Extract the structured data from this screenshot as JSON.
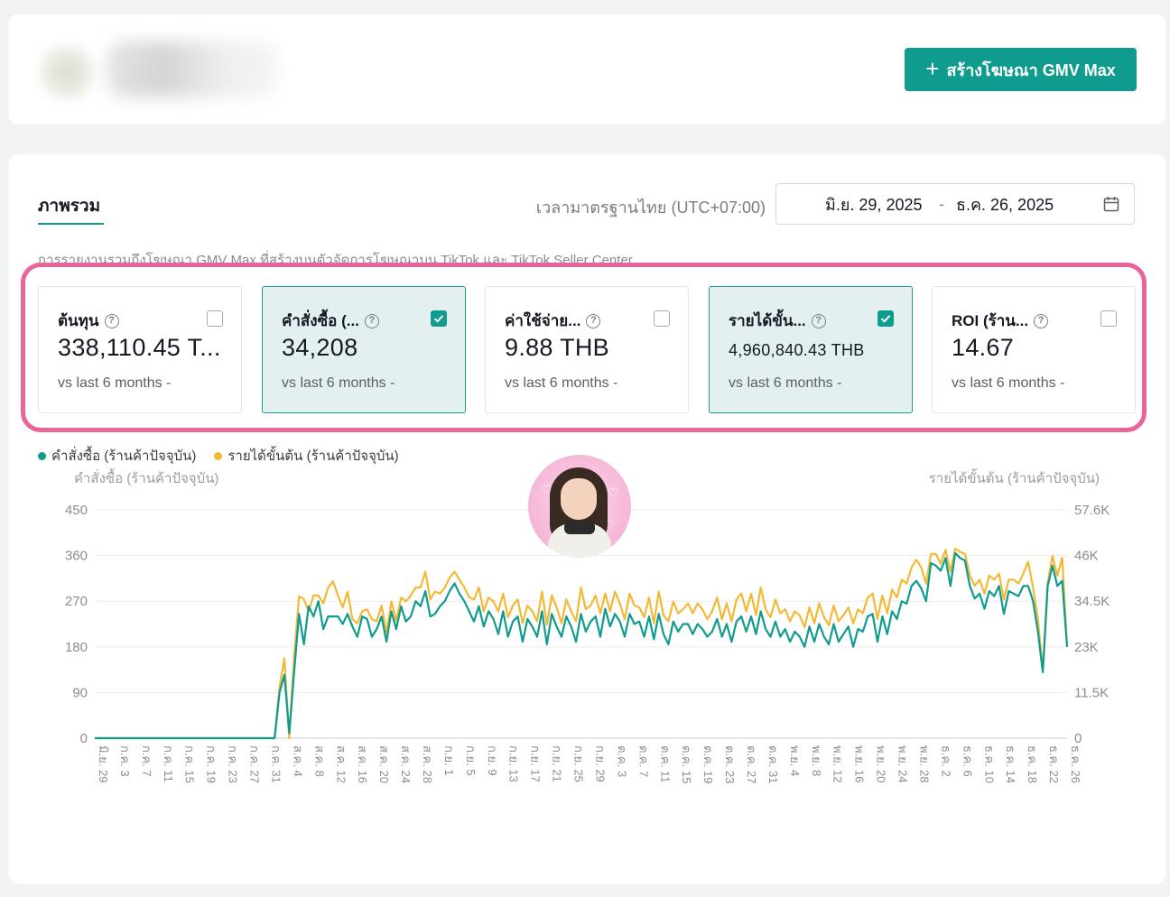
{
  "header": {
    "create_button_label": "สร้างโฆษณา GMV Max"
  },
  "overview": {
    "tab_label": "ภาพรวม",
    "timezone": "เวลามาตรฐานไทย (UTC+07:00)",
    "date_start": "มิ.ย. 29, 2025",
    "date_sep": "-",
    "date_end": "ธ.ค. 26, 2025",
    "description": "การรายงานรวมถึงโฆษณา GMV Max ที่สร้างบนตัวจัดการโฆษณาบน TikTok และ TikTok Seller Center"
  },
  "metrics": [
    {
      "title": "ต้นทุน",
      "value": "338,110.45 T...",
      "compare": "vs last 6 months -",
      "selected": false
    },
    {
      "title": "คำสั่งซื้อ (...",
      "value": "34,208",
      "compare": "vs last 6 months -",
      "selected": true
    },
    {
      "title": "ค่าใช้จ่าย...",
      "value": "9.88 THB",
      "compare": "vs last 6 months -",
      "selected": false
    },
    {
      "title": "รายได้ขั้น...",
      "value": "4,960,840.43 THB",
      "compare": "vs last 6 months -",
      "selected": true
    },
    {
      "title": "ROI (ร้าน...",
      "value": "14.67",
      "compare": "vs last 6 months -",
      "selected": false
    }
  ],
  "chart_data": {
    "type": "line",
    "left_axis_title": "คำสั่งซื้อ (ร้านค้าปัจจุบัน)",
    "right_axis_title": "รายได้ขั้นต้น (ร้านค้าปัจจุบัน)",
    "left_ticks": [
      "0",
      "90",
      "180",
      "270",
      "360",
      "450"
    ],
    "right_ticks": [
      "0",
      "11.5K",
      "23K",
      "34.5K",
      "46K",
      "57.6K"
    ],
    "y_left_range": [
      0,
      450
    ],
    "y_right_range": [
      0,
      57600
    ],
    "x_tick_labels": [
      "มิ.ย. 29",
      "ก.ค. 3",
      "ก.ค. 7",
      "ก.ค. 11",
      "ก.ค. 15",
      "ก.ค. 19",
      "ก.ค. 23",
      "ก.ค. 27",
      "ก.ค. 31",
      "ส.ค. 4",
      "ส.ค. 8",
      "ส.ค. 12",
      "ส.ค. 16",
      "ส.ค. 20",
      "ส.ค. 24",
      "ส.ค. 28",
      "ก.ย. 1",
      "ก.ย. 5",
      "ก.ย. 9",
      "ก.ย. 13",
      "ก.ย. 17",
      "ก.ย. 21",
      "ก.ย. 25",
      "ก.ย. 29",
      "ต.ค. 3",
      "ต.ค. 7",
      "ต.ค. 11",
      "ต.ค. 15",
      "ต.ค. 19",
      "ต.ค. 23",
      "ต.ค. 27",
      "ต.ค. 31",
      "พ.ย. 4",
      "พ.ย. 8",
      "พ.ย. 12",
      "พ.ย. 16",
      "พ.ย. 20",
      "พ.ย. 24",
      "พ.ย. 28",
      "ธ.ค. 2",
      "ธ.ค. 6",
      "ธ.ค. 10",
      "ธ.ค. 14",
      "ธ.ค. 18",
      "ธ.ค. 22",
      "ธ.ค. 26"
    ],
    "series": [
      {
        "name": "คำสั่งซื้อ (ร้านค้าปัจจุบัน)",
        "axis": "left",
        "color": "#0f9b8e",
        "values": [
          0,
          0,
          0,
          0,
          0,
          0,
          0,
          0,
          0,
          0,
          0,
          0,
          0,
          0,
          0,
          0,
          0,
          0,
          0,
          0,
          0,
          0,
          0,
          0,
          0,
          0,
          0,
          0,
          0,
          0,
          0,
          0,
          0,
          0,
          0,
          0,
          0,
          0,
          90,
          125,
          10,
          130,
          245,
          185,
          260,
          240,
          270,
          215,
          240,
          240,
          240,
          225,
          245,
          220,
          200,
          240,
          235,
          200,
          215,
          240,
          190,
          250,
          215,
          260,
          230,
          240,
          270,
          260,
          290,
          240,
          245,
          260,
          270,
          290,
          305,
          285,
          270,
          250,
          230,
          260,
          220,
          250,
          235,
          205,
          250,
          200,
          230,
          240,
          190,
          235,
          220,
          200,
          250,
          185,
          245,
          220,
          200,
          240,
          220,
          190,
          245,
          210,
          230,
          240,
          200,
          255,
          220,
          245,
          230,
          200,
          245,
          225,
          230,
          200,
          240,
          195,
          245,
          205,
          185,
          230,
          210,
          225,
          225,
          205,
          225,
          215,
          200,
          210,
          235,
          200,
          225,
          190,
          230,
          240,
          210,
          240,
          205,
          250,
          215,
          200,
          230,
          200,
          215,
          190,
          210,
          200,
          180,
          220,
          190,
          225,
          200,
          185,
          225,
          190,
          205,
          220,
          180,
          215,
          210,
          240,
          245,
          190,
          240,
          205,
          250,
          235,
          270,
          265,
          300,
          310,
          295,
          270,
          345,
          340,
          330,
          355,
          300,
          365,
          355,
          350,
          300,
          275,
          285,
          255,
          290,
          280,
          300,
          245,
          290,
          285,
          280,
          300,
          300,
          270,
          210,
          130,
          300,
          340,
          300,
          310,
          180
        ]
      },
      {
        "name": "รายได้ขั้นต้น (ร้านค้าปัจจุบัน)",
        "axis": "right",
        "color": "#f4b934",
        "values": [
          0,
          0,
          0,
          0,
          0,
          0,
          0,
          0,
          0,
          0,
          0,
          0,
          0,
          0,
          0,
          0,
          0,
          0,
          0,
          0,
          0,
          0,
          0,
          0,
          0,
          0,
          0,
          0,
          0,
          0,
          0,
          0,
          0,
          0,
          0,
          0,
          0,
          0,
          12800,
          20200,
          0,
          20500,
          35800,
          35100,
          32000,
          36000,
          36000,
          34000,
          38000,
          39600,
          36000,
          33000,
          37000,
          30000,
          29000,
          32000,
          32500,
          30000,
          29500,
          33500,
          26500,
          34500,
          29600,
          35500,
          34500,
          36000,
          38000,
          38000,
          42000,
          35000,
          37000,
          36500,
          38000,
          40500,
          42000,
          40000,
          38000,
          35600,
          35000,
          38000,
          32000,
          35500,
          34500,
          32000,
          36500,
          30500,
          33500,
          35000,
          29000,
          33500,
          32000,
          29500,
          37000,
          28600,
          36000,
          33000,
          29000,
          35000,
          32000,
          29500,
          38000,
          32500,
          33500,
          36000,
          31500,
          36500,
          32000,
          37000,
          34000,
          30000,
          36500,
          33500,
          33000,
          30500,
          35500,
          29000,
          37000,
          31000,
          29500,
          34500,
          31500,
          32500,
          34000,
          31500,
          34000,
          32500,
          30000,
          32000,
          35500,
          30000,
          34000,
          29500,
          35000,
          36500,
          32000,
          36500,
          31000,
          38000,
          32500,
          30500,
          35000,
          31500,
          32500,
          29500,
          32000,
          31000,
          28000,
          33000,
          29000,
          34000,
          30500,
          28500,
          33500,
          29500,
          31000,
          33000,
          29000,
          32500,
          31500,
          35500,
          36500,
          30000,
          36000,
          31500,
          37500,
          35500,
          40000,
          39000,
          43000,
          45000,
          43000,
          39000,
          46500,
          46500,
          44000,
          47500,
          42000,
          47800,
          47000,
          46500,
          41000,
          38500,
          40000,
          36500,
          41000,
          40000,
          41500,
          35000,
          40000,
          40000,
          39000,
          41500,
          44500,
          38000,
          30000,
          17000,
          39000,
          46000,
          41000,
          45500,
          23000
        ]
      }
    ],
    "legend_placement": "top-left",
    "grid": true
  }
}
